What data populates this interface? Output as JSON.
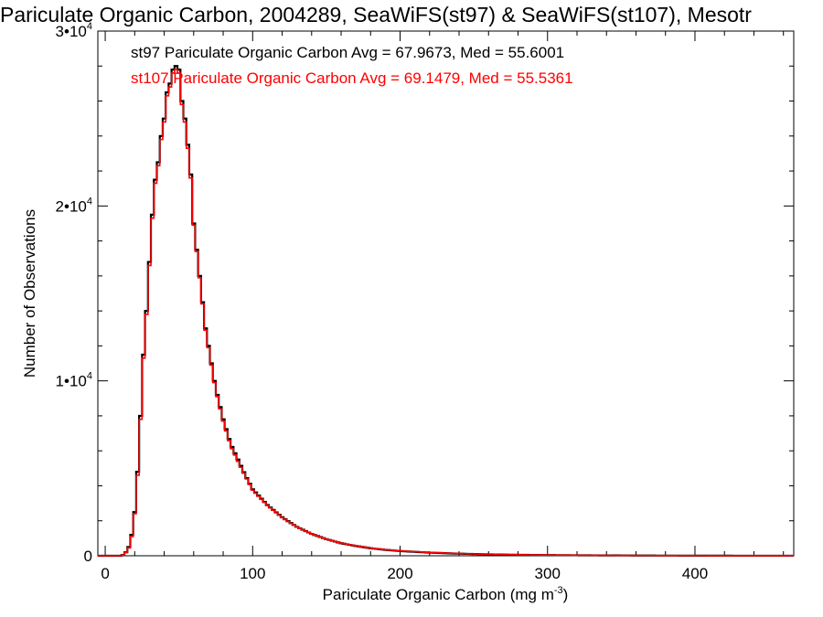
{
  "chart_data": {
    "type": "histogram-step",
    "title": "Pariculate Organic Carbon, 2004289, SeaWiFS(st97) & SeaWiFS(st107), Mesotr",
    "xlabel": "Pariculate Organic Carbon (mg m",
    "xlabel_sup": "-3",
    "xlabel_suffix": ")",
    "ylabel": "Number of Observations",
    "xlim": [
      -5,
      467
    ],
    "ylim": [
      0,
      30000
    ],
    "x_ticks": [
      0,
      100,
      200,
      300,
      400
    ],
    "x_tick_labels": [
      "0",
      "100",
      "200",
      "300",
      "400"
    ],
    "y_ticks": [
      0,
      10000,
      20000,
      30000
    ],
    "y_tick_labels": [
      {
        "base": "0",
        "sup": ""
      },
      {
        "base": "1•10",
        "sup": "4"
      },
      {
        "base": "2•10",
        "sup": "4"
      },
      {
        "base": "3•10",
        "sup": "4"
      }
    ],
    "bin_width": 2,
    "x": [
      0,
      2,
      4,
      6,
      8,
      10,
      12,
      14,
      16,
      18,
      20,
      22,
      24,
      26,
      28,
      30,
      32,
      34,
      36,
      38,
      40,
      42,
      44,
      46,
      48,
      50,
      52,
      54,
      56,
      58,
      60,
      62,
      64,
      66,
      68,
      70,
      72,
      74,
      76,
      78,
      80,
      85,
      90,
      95,
      100,
      110,
      120,
      130,
      140,
      150,
      160,
      170,
      180,
      190,
      200,
      220,
      240,
      260,
      280,
      300,
      320,
      340,
      360,
      380,
      400,
      420,
      440,
      466
    ],
    "series": [
      {
        "name": "st97",
        "color": "#000000",
        "annotation": "st97 Pariculate Organic Carbon Avg = 67.9673, Med = 55.6001",
        "y": [
          0,
          0,
          0,
          0,
          0,
          0,
          50,
          200,
          500,
          1200,
          2500,
          4800,
          8000,
          11500,
          14000,
          16800,
          19500,
          21500,
          22500,
          24000,
          25000,
          26500,
          27000,
          27800,
          28000,
          27800,
          26000,
          25000,
          23500,
          21800,
          19000,
          17500,
          16000,
          14500,
          13000,
          12000,
          11000,
          10000,
          9200,
          8500,
          7800,
          6400,
          5500,
          4600,
          3800,
          2900,
          2200,
          1650,
          1250,
          950,
          720,
          560,
          430,
          340,
          270,
          180,
          120,
          80,
          55,
          40,
          28,
          20,
          14,
          10,
          7,
          5,
          3,
          2
        ]
      },
      {
        "name": "st107",
        "color": "#ff0000",
        "annotation": "st107 Pariculate Organic Carbon Avg = 69.1479, Med = 55.5361",
        "y": [
          0,
          0,
          0,
          0,
          0,
          0,
          40,
          180,
          450,
          1100,
          2400,
          4600,
          7800,
          11300,
          13800,
          16600,
          19300,
          21300,
          22300,
          23800,
          24800,
          26300,
          26800,
          27600,
          27800,
          27600,
          25800,
          24800,
          23300,
          21600,
          18900,
          17400,
          15900,
          14400,
          12900,
          11900,
          10900,
          9900,
          9100,
          8400,
          7700,
          6300,
          5400,
          4550,
          3750,
          2870,
          2180,
          1640,
          1250,
          950,
          730,
          570,
          440,
          350,
          280,
          190,
          125,
          85,
          58,
          42,
          30,
          21,
          15,
          11,
          7,
          5,
          3,
          2
        ]
      }
    ],
    "grid": false,
    "legend": "top-left text annotations"
  }
}
